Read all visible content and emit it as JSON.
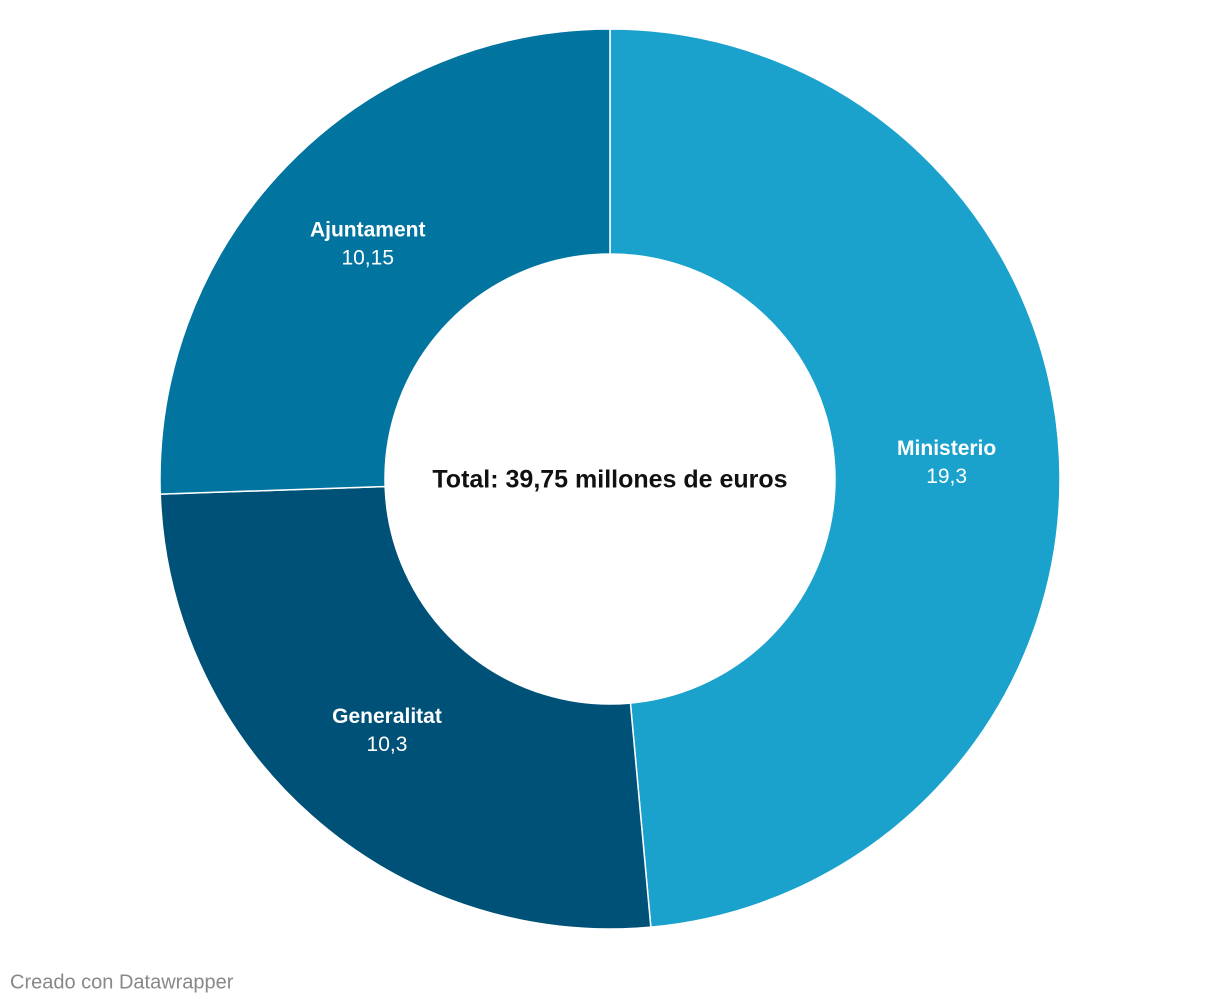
{
  "chart_data": {
    "type": "donut",
    "categories": [
      "Ministerio",
      "Generalitat",
      "Ajuntament"
    ],
    "values": [
      19.3,
      10.3,
      10.15
    ],
    "value_labels": [
      "19,3",
      "10,3",
      "10,15"
    ],
    "colors": [
      "#1aa1cc",
      "#005178",
      "#0274a0"
    ],
    "center_text": "Total: 39,75 millones de euros",
    "footer": "Creado con Datawrapper"
  }
}
